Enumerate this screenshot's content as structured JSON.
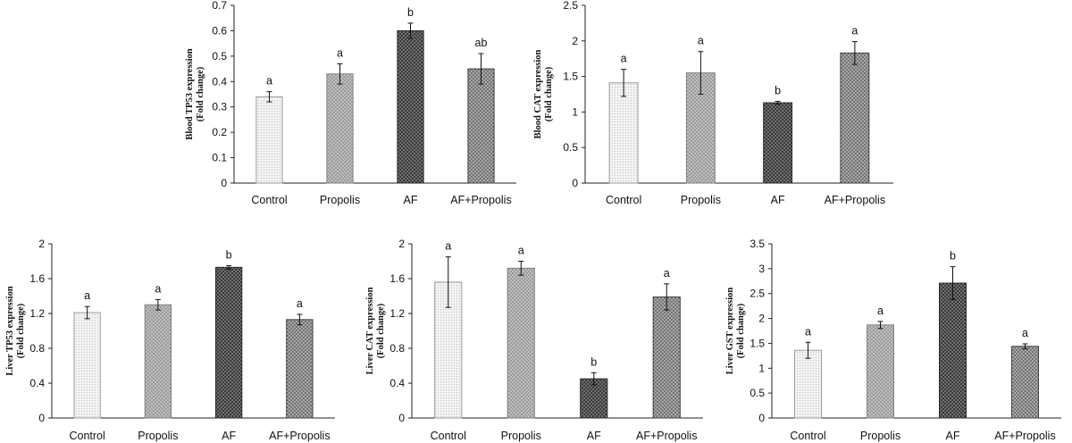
{
  "chart_data": [
    {
      "type": "bar",
      "id": "blood-tp53",
      "title": "",
      "ylabel_line1": "Blood TP53 expression",
      "ylabel_line2": "(Fold change)",
      "categories": [
        "Control",
        "Propolis",
        "AF",
        "AF+Propolis"
      ],
      "values": [
        0.34,
        0.43,
        0.6,
        0.45
      ],
      "errors": [
        0.02,
        0.04,
        0.03,
        0.06
      ],
      "significance": [
        "a",
        "a",
        "b",
        "ab"
      ],
      "ylim": [
        0,
        0.7
      ],
      "yticks": [
        0,
        0.1,
        0.2,
        0.3,
        0.4,
        0.5,
        0.6,
        0.7
      ],
      "ytick_labels": [
        "0",
        "0.1",
        "0.2",
        "0.3",
        "0.4",
        "0.5",
        "0.6",
        "0.7"
      ]
    },
    {
      "type": "bar",
      "id": "blood-cat",
      "title": "",
      "ylabel_line1": "Blood CAT expression",
      "ylabel_line2": "(Fold change)",
      "categories": [
        "Control",
        "Propolis",
        "AF",
        "AF+Propolis"
      ],
      "values": [
        1.41,
        1.55,
        1.13,
        1.83
      ],
      "errors": [
        0.19,
        0.3,
        0.02,
        0.16
      ],
      "significance": [
        "a",
        "a",
        "b",
        "a"
      ],
      "ylim": [
        0,
        2.5
      ],
      "yticks": [
        0,
        0.5,
        1,
        1.5,
        2,
        2.5
      ],
      "ytick_labels": [
        "0",
        "0.5",
        "1",
        "1.5",
        "2",
        "2.5"
      ]
    },
    {
      "type": "bar",
      "id": "liver-tp53",
      "title": "",
      "ylabel_line1": "Liver TP53 expression",
      "ylabel_line2": "(Fold change)",
      "categories": [
        "Control",
        "Propolis",
        "AF",
        "AF+Propolis"
      ],
      "values": [
        1.21,
        1.3,
        1.73,
        1.13
      ],
      "errors": [
        0.07,
        0.06,
        0.02,
        0.06
      ],
      "significance": [
        "a",
        "a",
        "b",
        "a"
      ],
      "ylim": [
        0,
        2
      ],
      "yticks": [
        0,
        0.4,
        0.8,
        1.2,
        1.6,
        2
      ],
      "ytick_labels": [
        "0",
        "0.4",
        "0.8",
        "1.2",
        "1.6",
        "2"
      ]
    },
    {
      "type": "bar",
      "id": "liver-cat",
      "title": "",
      "ylabel_line1": "Liver CAT expression",
      "ylabel_line2": "(Fold change)",
      "categories": [
        "Control",
        "Propolis",
        "AF",
        "AF+Propolis"
      ],
      "values": [
        1.56,
        1.72,
        0.45,
        1.39
      ],
      "errors": [
        0.29,
        0.08,
        0.07,
        0.15
      ],
      "significance": [
        "a",
        "a",
        "b",
        "a"
      ],
      "ylim": [
        0,
        2
      ],
      "yticks": [
        0,
        0.4,
        0.8,
        1.2,
        1.6,
        2
      ],
      "ytick_labels": [
        "0",
        "0.4",
        "0.8",
        "1.2",
        "1.6",
        "2"
      ]
    },
    {
      "type": "bar",
      "id": "liver-gst",
      "title": "",
      "ylabel_line1": "Liver GST expression",
      "ylabel_line2": "(Fold change)",
      "categories": [
        "Control",
        "Propolis",
        "AF",
        "AF+Propolis"
      ],
      "values": [
        1.36,
        1.87,
        2.71,
        1.44
      ],
      "errors": [
        0.16,
        0.07,
        0.33,
        0.05
      ],
      "significance": [
        "a",
        "a",
        "b",
        "a"
      ],
      "ylim": [
        0,
        3.5
      ],
      "yticks": [
        0,
        0.5,
        1,
        1.5,
        2,
        2.5,
        3,
        3.5
      ],
      "ytick_labels": [
        "0",
        "0.5",
        "1",
        "1.5",
        "2",
        "2.5",
        "3",
        "3.5"
      ]
    }
  ],
  "bar_fill_colors": [
    "#ececec",
    "#a9a9a9",
    "#4a4a4a",
    "#7a7a7a"
  ],
  "bar_stroke_colors": [
    "#9a9a9a",
    "#808080",
    "#2a2a2a",
    "#404040"
  ]
}
